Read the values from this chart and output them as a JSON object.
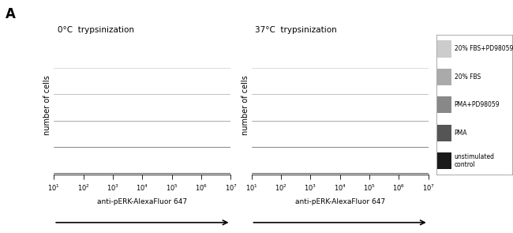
{
  "title_left": "0°C  trypsinization",
  "title_right": "37°C  trypsinization",
  "panel_label": "A",
  "ylabel": "number of cells",
  "xlabel": "anti-pERK-AlexaFluor 647",
  "legend_labels": [
    "20% FBS+PD98059",
    "20% FBS",
    "PMA+PD98059",
    "PMA",
    "unstimulated\ncontrol"
  ],
  "colors": [
    "#cccccc",
    "#aaaaaa",
    "#888888",
    "#555555",
    "#1a1a1a"
  ],
  "background": "#ffffff",
  "offsets": [
    0.0,
    0.16,
    0.32,
    0.48,
    0.64
  ],
  "peak_scale": 0.13
}
